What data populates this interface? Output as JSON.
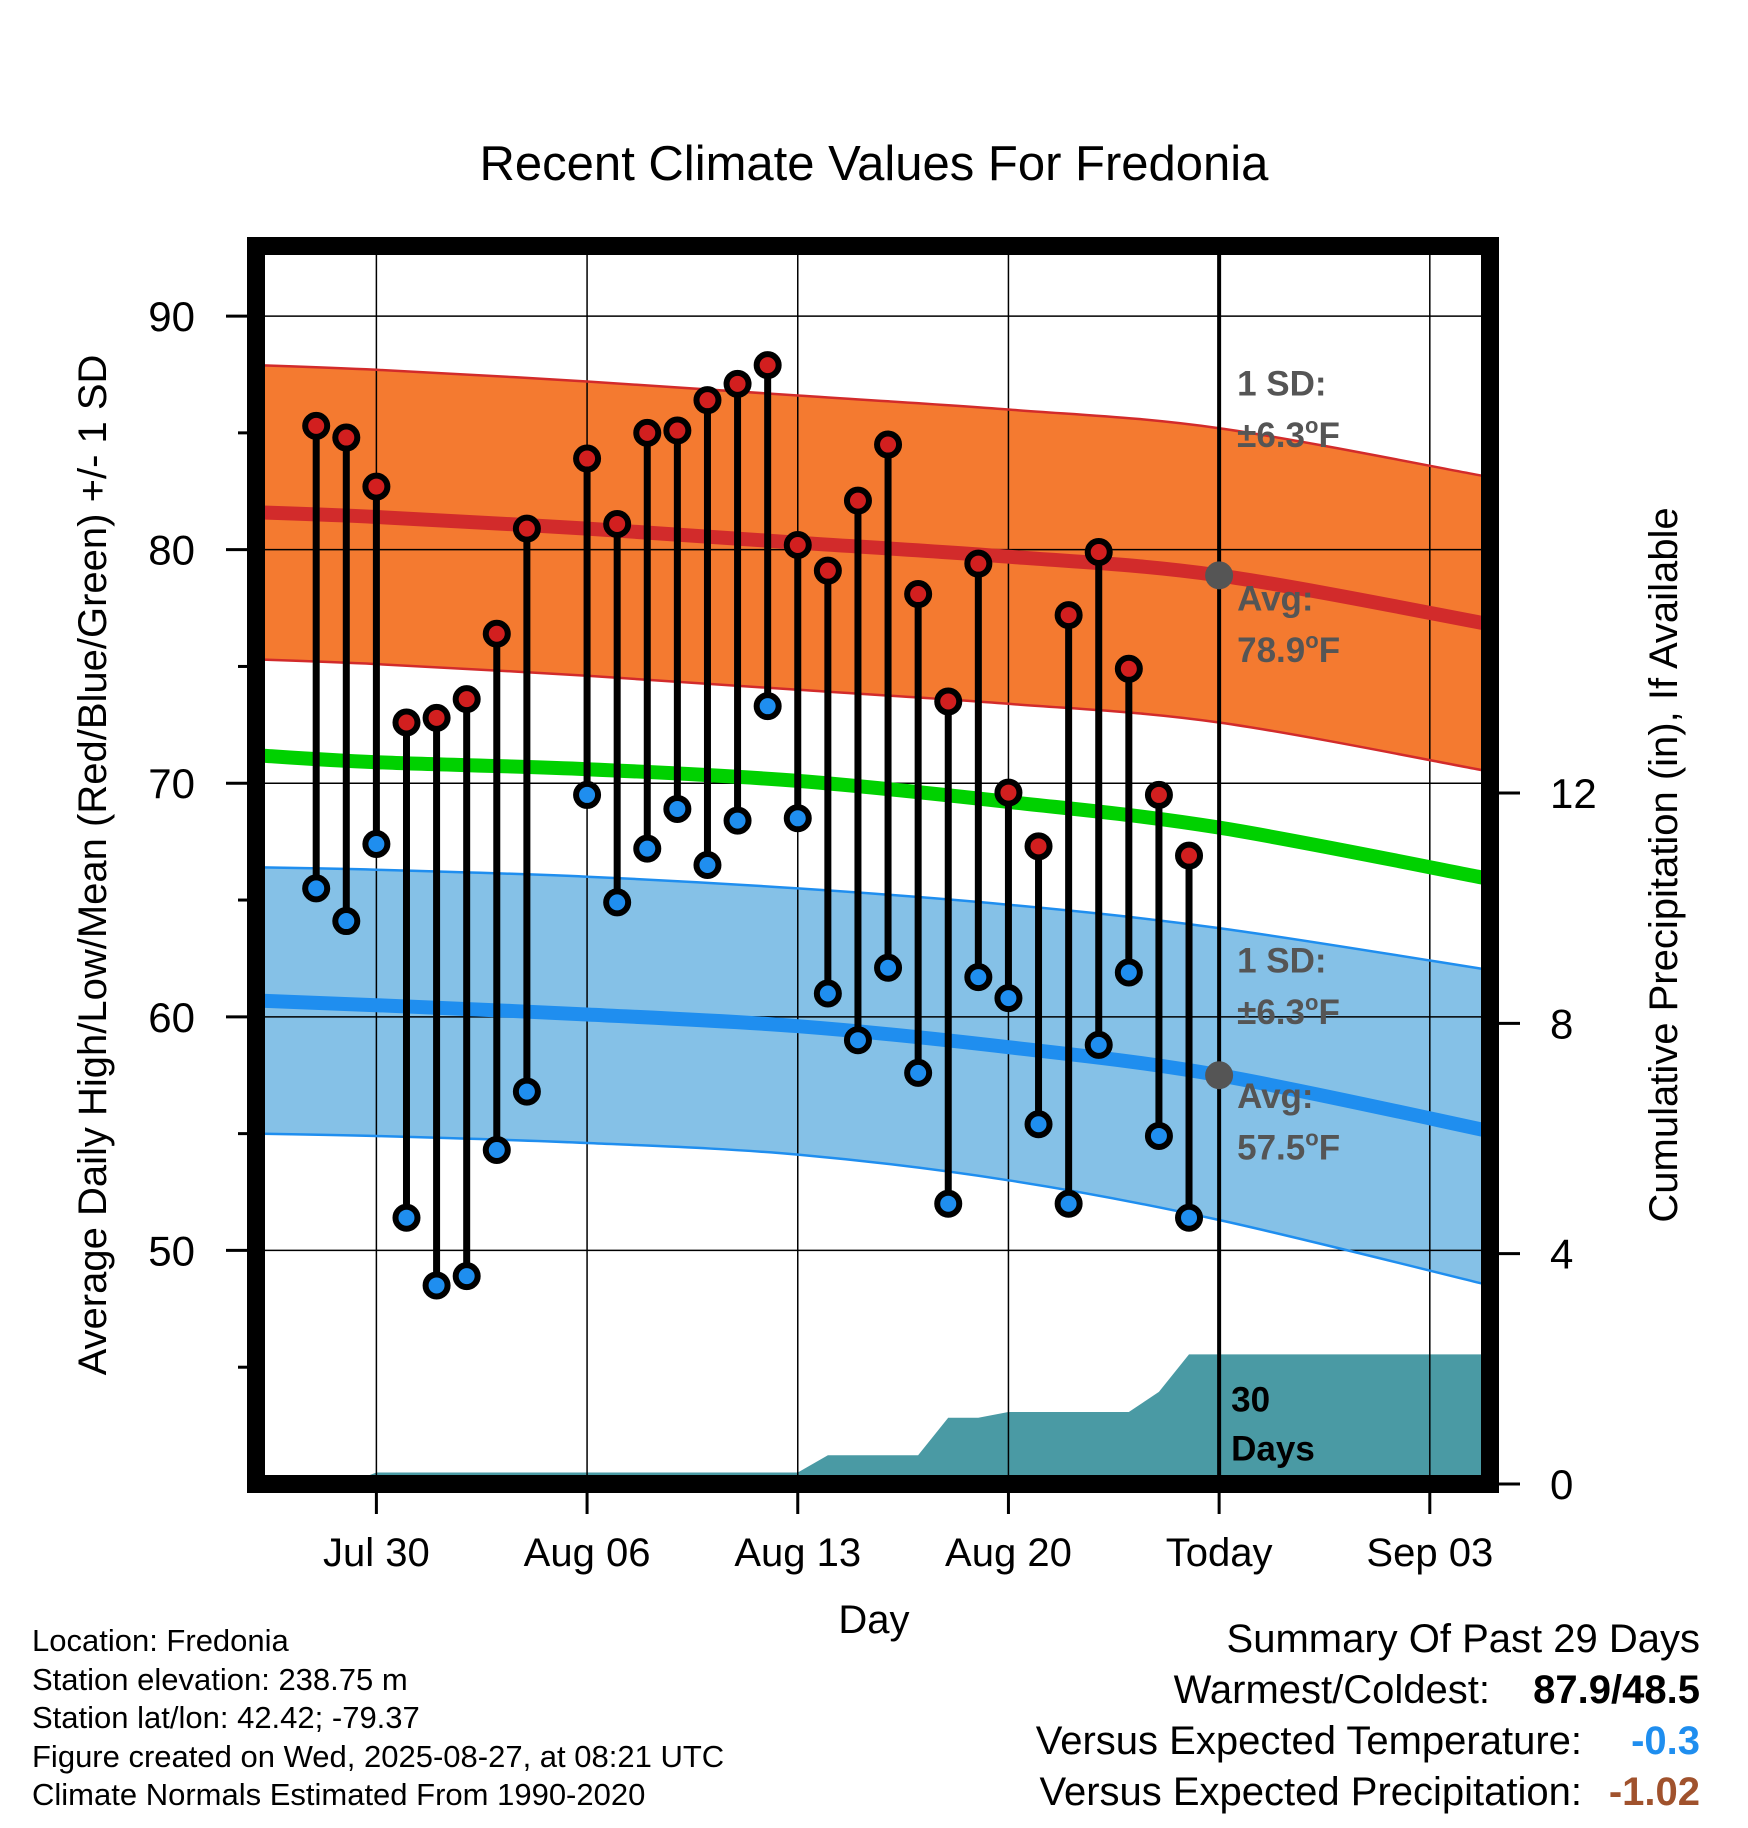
{
  "chart_data": {
    "type": "line",
    "title": "Recent Climate Values For Fredonia",
    "xlabel": "Day",
    "ylabel": "Average Daily High/Low/Mean (Red/Blue/Green) +/- 1 SD",
    "y2label": "Cumulative Precipitation (in), If Available",
    "ylim": [
      40,
      93
    ],
    "y2lim": [
      0,
      21.5
    ],
    "y_ticks": [
      "50",
      "60",
      "70",
      "80",
      "90"
    ],
    "y2_ticks": [
      "0",
      "4",
      "8",
      "12"
    ],
    "x_ticks": [
      "Jul 30",
      "Aug 06",
      "Aug 13",
      "Aug 20",
      "Today",
      "Sep 03"
    ],
    "x_range_days": [
      "Jul 26",
      "Sep 05"
    ],
    "today": "Aug 27",
    "grid": true,
    "colors": {
      "high_band": "#f47a30",
      "high_avg": "#d22b2b",
      "low_band": "#85c1e7",
      "low_avg": "#1f8eef",
      "mean": "#00d100",
      "precip": "#4a9aa4",
      "high_marker": "#d21f1f",
      "low_marker": "#1f8eef",
      "warm_value": "#1f8eef",
      "precip_value": "#a0522d",
      "annotation_text": "#555555"
    },
    "normals": {
      "days": [
        "Jul 26",
        "Jul 30",
        "Aug 06",
        "Aug 13",
        "Aug 20",
        "Aug 27",
        "Sep 05"
      ],
      "high_avg": [
        81.6,
        81.4,
        80.9,
        80.3,
        79.7,
        78.9,
        76.8
      ],
      "low_avg": [
        60.7,
        60.5,
        60.1,
        59.6,
        58.7,
        57.5,
        55.1
      ],
      "mean": [
        71.2,
        70.9,
        70.6,
        70.1,
        69.2,
        68.1,
        65.9
      ],
      "sd": 6.3,
      "low_sd_upper": [
        66.4,
        66.3,
        66.0,
        65.5,
        64.8,
        63.8,
        62.0
      ],
      "low_sd_lower": [
        55.0,
        54.9,
        54.6,
        54.1,
        53.0,
        51.3,
        48.5
      ]
    },
    "daily": {
      "days": [
        "Jul 28",
        "Jul 29",
        "Jul 30",
        "Jul 31",
        "Aug 01",
        "Aug 02",
        "Aug 03",
        "Aug 04",
        "Aug 06",
        "Aug 07",
        "Aug 08",
        "Aug 09",
        "Aug 10",
        "Aug 11",
        "Aug 12",
        "Aug 13",
        "Aug 14",
        "Aug 15",
        "Aug 16",
        "Aug 17",
        "Aug 18",
        "Aug 19",
        "Aug 20",
        "Aug 21",
        "Aug 22",
        "Aug 23",
        "Aug 24",
        "Aug 25",
        "Aug 26"
      ],
      "high": [
        85.3,
        84.8,
        82.7,
        72.6,
        72.8,
        73.6,
        76.4,
        80.9,
        83.9,
        81.1,
        85.0,
        85.1,
        86.4,
        87.1,
        87.9,
        80.2,
        79.1,
        82.1,
        84.5,
        78.1,
        73.5,
        79.4,
        69.6,
        67.3,
        77.2,
        79.9,
        74.9,
        69.5,
        66.9
      ],
      "low": [
        65.5,
        64.1,
        67.4,
        51.4,
        48.5,
        48.9,
        54.3,
        56.8,
        69.5,
        64.9,
        67.2,
        68.9,
        66.5,
        68.4,
        73.3,
        68.5,
        61.0,
        59.0,
        62.1,
        57.6,
        52.0,
        61.7,
        60.8,
        55.4,
        52.0,
        58.8,
        61.9,
        54.9,
        51.4
      ]
    },
    "precip": {
      "days": [
        "Jul 26",
        "Jul 29",
        "Jul 30",
        "Aug 13",
        "Aug 14",
        "Aug 17",
        "Aug 18",
        "Aug 19",
        "Aug 20",
        "Aug 24",
        "Aug 25",
        "Aug 26",
        "Sep 05"
      ],
      "values": [
        0.0,
        0.0,
        0.2,
        0.2,
        0.5,
        0.5,
        1.15,
        1.15,
        1.25,
        1.25,
        1.6,
        2.25,
        2.25
      ]
    }
  },
  "annotations": {
    "high_sd_line1": "1 SD:",
    "high_sd_line2": "±6.3",
    "high_avg_line1": "Avg:",
    "high_avg_line2": "78.9",
    "low_sd_line1": "1 SD:",
    "low_sd_line2": "±6.3",
    "low_avg_line1": "Avg:",
    "low_avg_line2": "57.5",
    "degree": "o",
    "unit": "F",
    "precip_line1": "30",
    "precip_line2": "Days"
  },
  "info": {
    "location": "Location: Fredonia",
    "elevation": "Station elevation: 238.75 m",
    "latlon": "Station lat/lon: 42.42; -79.37",
    "created": "Figure created on Wed, 2025-08-27, at 08:21 UTC",
    "normals": "Climate Normals Estimated From 1990-2020"
  },
  "summary": {
    "title": "Summary Of Past 29 Days",
    "warm_label": "Warmest/Coldest:",
    "warm_value": "87.9/48.5",
    "temp_label": "Versus Expected Temperature:",
    "temp_value": "-0.3",
    "precip_label": "Versus Expected Precipitation:",
    "precip_value": "-1.02"
  }
}
